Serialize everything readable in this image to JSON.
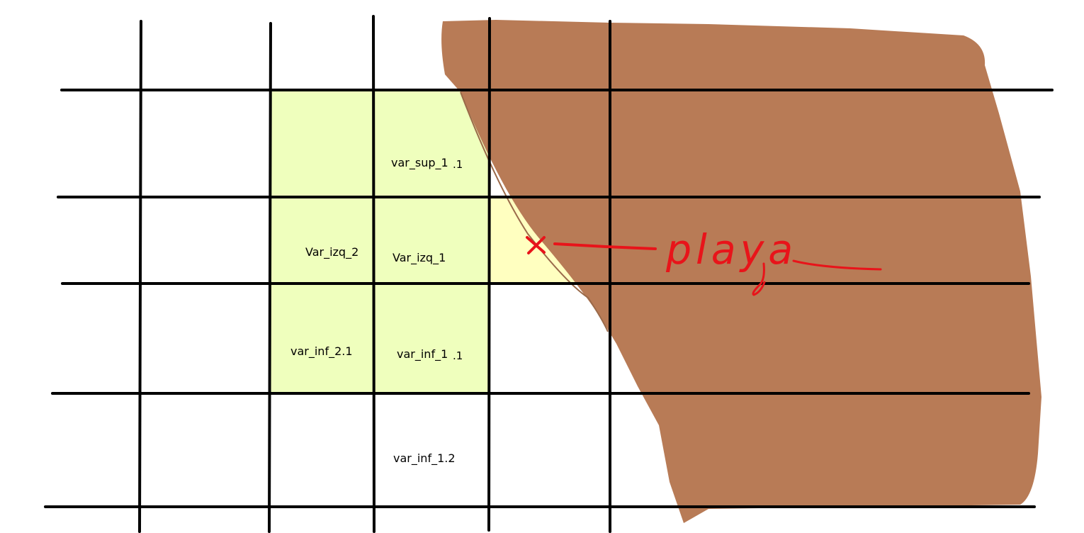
{
  "colors": {
    "background": "#ffffff",
    "land": "#b87b56",
    "highlight": "#efffbd",
    "target_cell": "#ffffc0",
    "grid": "#000000",
    "marker": "#e8141a",
    "coastline": "#9a6a4a"
  },
  "labels": {
    "var_sup_1": "var_sup_1",
    "var_sup_1_suffix": ".1",
    "var_izq_2": "Var_izq_2",
    "var_izq_1": "Var_izq_1",
    "var_inf_2_1": "var_inf_2.1",
    "var_inf_1": "var_inf_1",
    "var_inf_1_suffix": ".1",
    "var_inf_1_2": "var_inf_1.2"
  },
  "annotation": {
    "text": "playa",
    "marker_icon": "x-mark-icon"
  }
}
